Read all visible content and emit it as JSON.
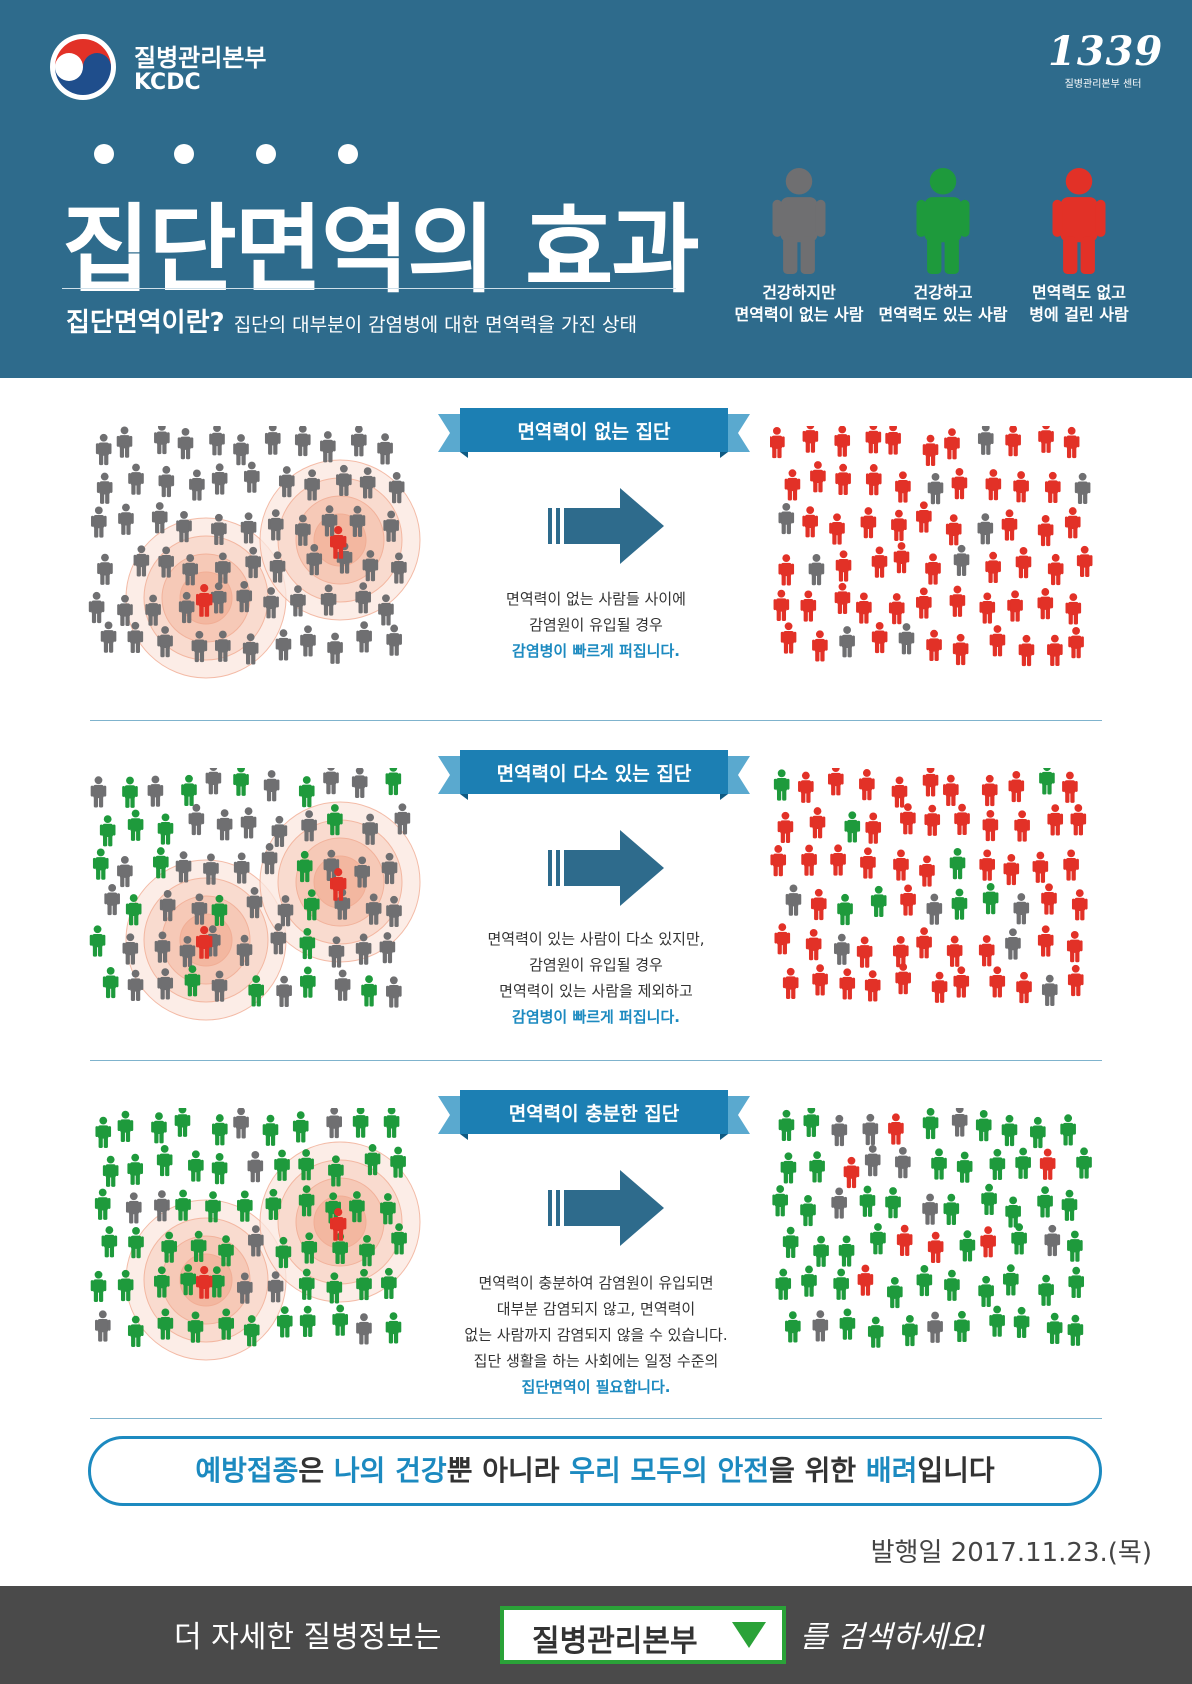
{
  "header": {
    "org_name_ko": "질병관리본부",
    "org_name_en": "KCDC",
    "hotline_number": "1339",
    "hotline_sub": "질병관리본부  센터",
    "title": "집단면역의 효과",
    "definition_term": "집단면역이란?",
    "definition_text": "집단의 대부분이 감염병에 대한 면역력을 가진 상태",
    "legend": [
      {
        "line1": "건강하지만",
        "line2": "면역력이 없는 사람",
        "color": "#6f6f71"
      },
      {
        "line1": "건강하고",
        "line2": "면역력도 있는 사람",
        "color": "#1e9a3c"
      },
      {
        "line1": "면역력도 없고",
        "line2": "병에 걸린 사람",
        "color": "#e23127"
      }
    ]
  },
  "colors": {
    "gray": "#6f6f71",
    "green": "#1e9a3c",
    "red": "#e23127",
    "accent": "#1c8ac0",
    "header_bg": "#2e6b8c"
  },
  "sections": [
    {
      "title": "면역력이 없는 집단",
      "caption": [
        "면역력이 없는 사람들 사이에",
        "감염원이 유입될 경우"
      ],
      "caption_highlight": "감염병이 빠르게 퍼집니다."
    },
    {
      "title": "면역력이 다소 있는 집단",
      "caption": [
        "면역력이 있는 사람이 다소 있지만,",
        "감염원이 유입될 경우",
        "면역력이 있는 사람을 제외하고"
      ],
      "caption_highlight": "감염병이 빠르게 퍼집니다."
    },
    {
      "title": "면역력이 충분한 집단",
      "caption": [
        "면역력이 충분하여 감염원이 유입되면",
        "대부분 감염되지 않고, 면역력이",
        "없는 사람까지 감염되지 않을 수 있습니다.",
        "집단 생활을 하는 사회에는 일정 수준의"
      ],
      "caption_highlight": "집단면역이 필요합니다."
    }
  ],
  "banner": {
    "p1": "예방접종",
    "p2": "은 ",
    "p3": "나의 건강",
    "p4": "뿐 아니라 ",
    "p5": "우리 모두의 안전",
    "p6": "을 위한 ",
    "p7": "배려",
    "p8": "입니다"
  },
  "publish_date": "발행일 2017.11.23.(목)",
  "footer": {
    "prefix": "더 자세한 질병정보는",
    "search_term": "질병관리본부",
    "suffix": "를 검색하세요!"
  }
}
